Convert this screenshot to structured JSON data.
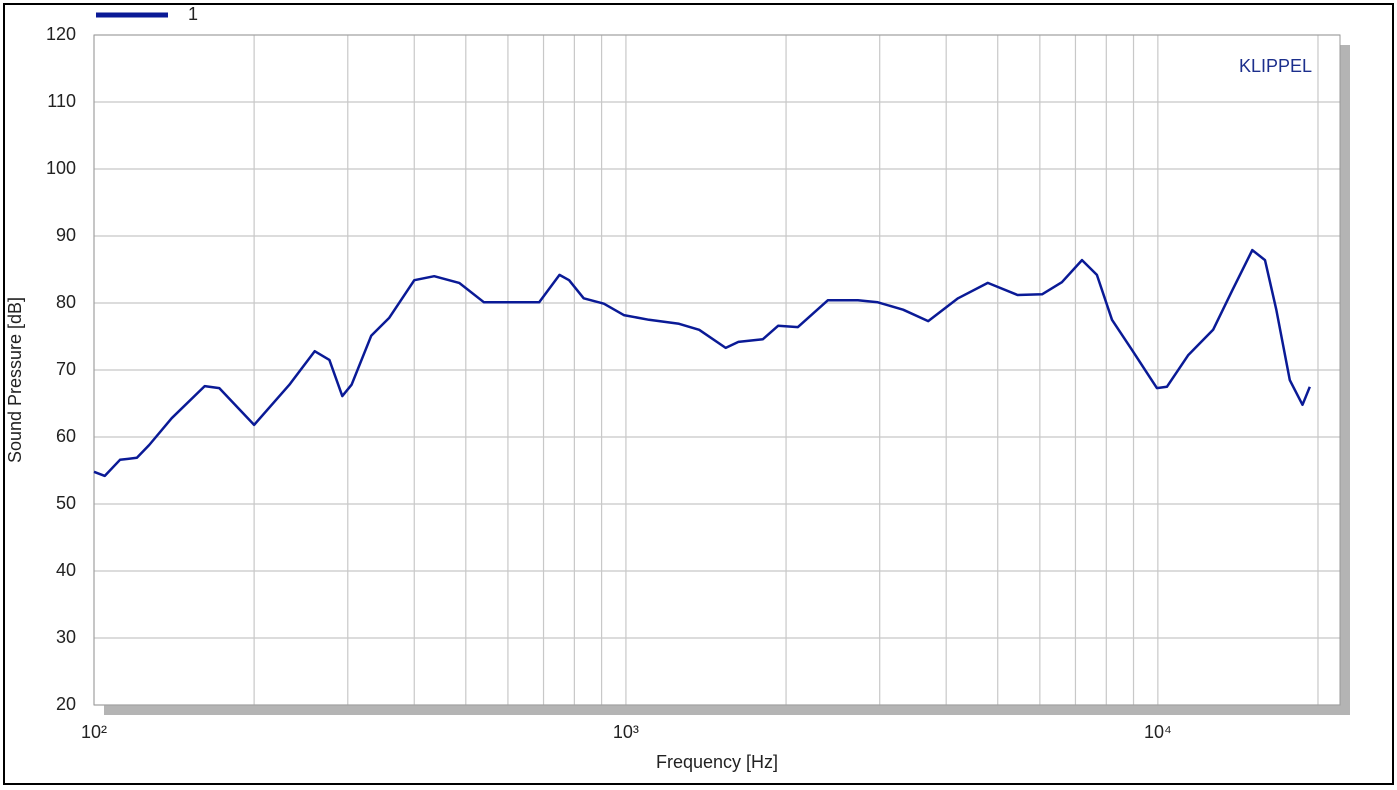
{
  "chart_data": {
    "type": "line",
    "annotation": "KLIPPEL",
    "x_label": "Frequency  [Hz]",
    "y_label": "Sound Pressure  [dB]",
    "xscale": "log",
    "grid": true,
    "legend": "top-left",
    "xlim": [
      100,
      22000
    ],
    "ylim": [
      20,
      120
    ],
    "xticks": [
      {
        "value": 100,
        "label": "10²"
      },
      {
        "value": 1000,
        "label": "10³"
      },
      {
        "value": 10000,
        "label": "10⁴"
      }
    ],
    "x_minor_ticks": [
      200,
      300,
      400,
      500,
      600,
      700,
      800,
      900,
      2000,
      3000,
      4000,
      5000,
      6000,
      7000,
      8000,
      9000,
      20000
    ],
    "yticks": [
      20,
      30,
      40,
      50,
      60,
      70,
      80,
      90,
      100,
      110,
      120
    ],
    "x": [
      100,
      104.8,
      111.9,
      120.4,
      127,
      140,
      161.5,
      172,
      200,
      233,
      260,
      277,
      293,
      305,
      332,
      359,
      400,
      436,
      486,
      541,
      603,
      687,
      750,
      782,
      833,
      909,
      991,
      1105,
      1258,
      1373,
      1540,
      1627,
      1809,
      1932,
      2105,
      2396,
      2729,
      2975,
      3320,
      3700,
      4210,
      4790,
      5450,
      6060,
      6600,
      7200,
      7680,
      8200,
      8940,
      9960,
      10400,
      11400,
      12700,
      13800,
      15050,
      15900,
      16700,
      17700,
      18700,
      19300
    ],
    "series": [
      {
        "name": "1",
        "color": "#0a1a96",
        "values": [
          54.8,
          54.2,
          56.6,
          56.9,
          58.8,
          62.8,
          67.6,
          67.3,
          61.8,
          67.8,
          72.8,
          71.5,
          66.1,
          67.8,
          75.1,
          77.8,
          83.4,
          84.0,
          83.0,
          80.1,
          80.1,
          80.1,
          84.2,
          83.4,
          80.7,
          79.9,
          78.2,
          77.5,
          76.9,
          76.0,
          73.3,
          74.2,
          74.6,
          76.6,
          76.4,
          80.4,
          80.4,
          80.1,
          79.0,
          77.3,
          80.7,
          83.0,
          81.2,
          81.3,
          83.1,
          86.4,
          84.2,
          77.5,
          73.0,
          67.3,
          67.5,
          72.2,
          76.0,
          81.9,
          87.9,
          86.4,
          79.0,
          68.5,
          64.8,
          67.5
        ]
      }
    ]
  }
}
